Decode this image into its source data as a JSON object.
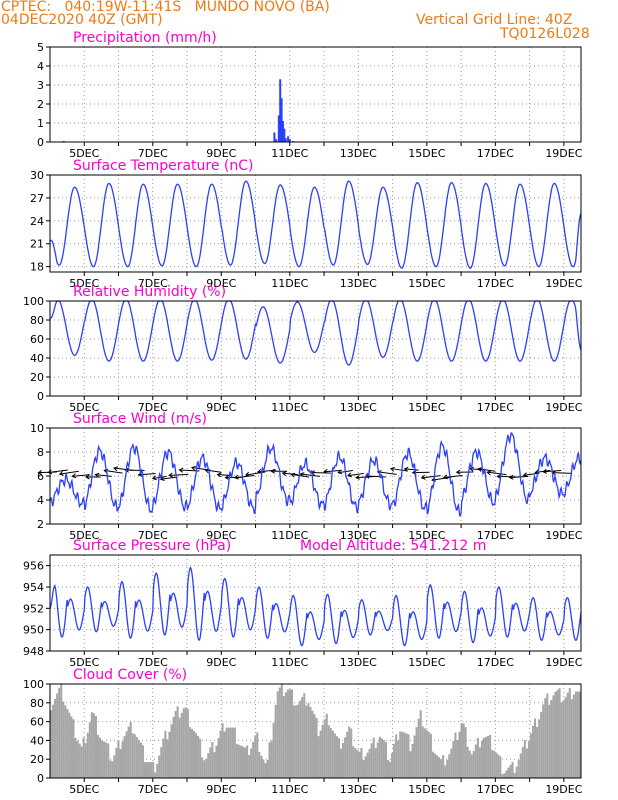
{
  "header": {
    "line1": "CPTEC:   040:19W-11:41S   MUNDO NOVO (BA)",
    "line2": "04DEC2020 40Z (GMT)",
    "grid_line": "Vertical Grid Line: 40Z",
    "code": "TQ0126L028"
  },
  "colors": {
    "header": "#f07a12",
    "title": "#ff00cc",
    "series": "#2b3fff",
    "cloud": "#a6a6a6",
    "grid": "#9a9a9a"
  },
  "chart_data": [
    {
      "type": "bar",
      "title": "Precipitation (mm/h)",
      "ylim": [
        0,
        5
      ],
      "yticks": [
        0,
        1,
        2,
        3,
        4,
        5
      ],
      "xlim": [
        4,
        19.5
      ],
      "xticks": [
        "5DEC",
        "7DEC",
        "9DEC",
        "11DEC",
        "13DEC",
        "15DEC",
        "17DEC",
        "19DEC"
      ],
      "grid": true,
      "bars": [
        {
          "x": 4.4,
          "y": 0.05
        },
        {
          "x": 10.55,
          "y": 0.5
        },
        {
          "x": 10.6,
          "y": 0.15
        },
        {
          "x": 10.68,
          "y": 1.4
        },
        {
          "x": 10.72,
          "y": 3.3
        },
        {
          "x": 10.76,
          "y": 2.3
        },
        {
          "x": 10.8,
          "y": 1.1
        },
        {
          "x": 10.84,
          "y": 0.7
        },
        {
          "x": 10.88,
          "y": 0.2
        },
        {
          "x": 10.95,
          "y": 0.3
        },
        {
          "x": 11.0,
          "y": 0.15
        },
        {
          "x": 11.1,
          "y": 0.05
        }
      ]
    },
    {
      "type": "line",
      "title": "Surface Temperature (nC)",
      "ylim": [
        17.3,
        30
      ],
      "yticks": [
        18,
        21,
        24,
        27,
        30
      ],
      "xlim": [
        4,
        19.5
      ],
      "xticks": [
        "5DEC",
        "7DEC",
        "9DEC",
        "11DEC",
        "13DEC",
        "15DEC",
        "17DEC",
        "19DEC"
      ],
      "grid": true,
      "series": [
        {
          "daily_max": [
            28.4,
            28.9,
            28.8,
            28.8,
            28.8,
            29.2,
            28.7,
            28.4,
            29.2,
            28.4,
            29.0,
            29.0,
            28.9,
            28.8,
            28.9
          ],
          "daily_min": [
            18.2,
            18.0,
            18.0,
            18.1,
            18.0,
            18.2,
            18.4,
            18.0,
            18.2,
            18.3,
            17.8,
            18.0,
            17.8,
            18.1,
            18.0
          ],
          "start": 21.3,
          "end": 25.0
        }
      ]
    },
    {
      "type": "line",
      "title": "Relative Humidity (%)",
      "ylim": [
        0,
        100
      ],
      "yticks": [
        0,
        20,
        40,
        60,
        80,
        100
      ],
      "xlim": [
        4,
        19.5
      ],
      "xticks": [
        "5DEC",
        "7DEC",
        "9DEC",
        "11DEC",
        "13DEC",
        "15DEC",
        "17DEC",
        "19DEC"
      ],
      "grid": true,
      "series": [
        {
          "daily_max": [
            100,
            100,
            100,
            100,
            100,
            100,
            92,
            97,
            100,
            100,
            100,
            100,
            100,
            100,
            100
          ],
          "daily_min": [
            42,
            36,
            36,
            36,
            37,
            38,
            34,
            45,
            32,
            40,
            36,
            36,
            36,
            36,
            36
          ],
          "start": 82,
          "end": 48
        }
      ]
    },
    {
      "type": "line",
      "title": "Surface Wind (m/s)",
      "ylim": [
        2,
        10
      ],
      "yticks": [
        2,
        4,
        6,
        8,
        10
      ],
      "xlim": [
        4,
        19.5
      ],
      "xticks": [
        "5DEC",
        "7DEC",
        "9DEC",
        "11DEC",
        "13DEC",
        "15DEC",
        "17DEC",
        "19DEC"
      ],
      "grid": true,
      "speed_peaks": [
        5.7,
        8.1,
        8.4,
        8.0,
        7.5,
        7.1,
        8.3,
        7.0,
        7.6,
        7.3,
        7.9,
        8.5,
        8.0,
        9.4,
        7.5
      ],
      "speed_lows": [
        3.7,
        3.4,
        3.2,
        3.4,
        3.3,
        3.3,
        4.0,
        3.6,
        3.4,
        3.6,
        3.3,
        3.0,
        3.8,
        4.0,
        4.5
      ],
      "wind_vectors_dir": "east-to-west"
    },
    {
      "type": "line",
      "title": "Surface Pressure (hPa)",
      "annotation": "Model Altitude: 541.212 m",
      "ylim": [
        948,
        957
      ],
      "yticks": [
        948,
        950,
        952,
        954,
        956
      ],
      "xlim": [
        4,
        19.5
      ],
      "xticks": [
        "5DEC",
        "7DEC",
        "9DEC",
        "11DEC",
        "13DEC",
        "15DEC",
        "17DEC",
        "19DEC"
      ],
      "grid": true,
      "series": [
        {
          "high_a": [
            954.6,
            954.0,
            954.5,
            955.3,
            955.8,
            954.8,
            954.0,
            953.2,
            953.3,
            952.8,
            953.2,
            954.2,
            953.6,
            954.0,
            953.0
          ],
          "low_a": [
            949.3,
            949.8,
            949.2,
            949.5,
            949.0,
            949.3,
            949.2,
            948.5,
            948.7,
            949.5,
            948.5,
            949.2,
            948.8,
            949.3,
            949.0
          ],
          "high_b": [
            952.4,
            951.8,
            952.2,
            952.8,
            953.2,
            952.2,
            951.6,
            951.2,
            951.4,
            950.8,
            951.2,
            951.8,
            951.6,
            951.8,
            951.2
          ],
          "low_b": [
            950.5,
            950.0,
            950.3,
            950.8,
            951.0,
            950.2,
            950.0,
            949.8,
            949.6,
            949.8,
            949.7,
            950.0,
            949.8,
            950.0,
            949.5
          ],
          "start": 952.0,
          "end": 948.5
        }
      ]
    },
    {
      "type": "area",
      "title": "Cloud Cover (%)",
      "ylim": [
        0,
        100
      ],
      "yticks": [
        0,
        20,
        40,
        60,
        80,
        100
      ],
      "xlim": [
        4,
        19.5
      ],
      "xticks": [
        "5DEC",
        "7DEC",
        "9DEC",
        "11DEC",
        "13DEC",
        "15DEC",
        "17DEC",
        "19DEC"
      ],
      "grid": true,
      "x": [
        4.0,
        4.3,
        4.6,
        4.9,
        5.2,
        5.5,
        5.8,
        6.1,
        6.4,
        6.7,
        7.0,
        7.3,
        7.6,
        7.9,
        8.2,
        8.5,
        8.8,
        9.1,
        9.4,
        9.7,
        10.0,
        10.3,
        10.6,
        10.9,
        11.2,
        11.5,
        11.8,
        12.1,
        12.4,
        12.7,
        13.0,
        13.3,
        13.6,
        13.9,
        14.2,
        14.5,
        14.8,
        15.1,
        15.4,
        15.7,
        16.0,
        16.3,
        16.6,
        16.9,
        17.2,
        17.5,
        17.8,
        18.1,
        18.4,
        18.7,
        19.0,
        19.3,
        19.5
      ],
      "values": [
        80,
        95,
        60,
        30,
        70,
        40,
        20,
        45,
        55,
        25,
        10,
        40,
        65,
        75,
        50,
        20,
        35,
        60,
        45,
        25,
        45,
        10,
        90,
        95,
        80,
        85,
        50,
        65,
        35,
        50,
        25,
        30,
        45,
        20,
        55,
        35,
        65,
        40,
        15,
        30,
        60,
        25,
        45,
        35,
        10,
        10,
        30,
        55,
        80,
        90,
        85,
        95,
        85
      ]
    }
  ]
}
